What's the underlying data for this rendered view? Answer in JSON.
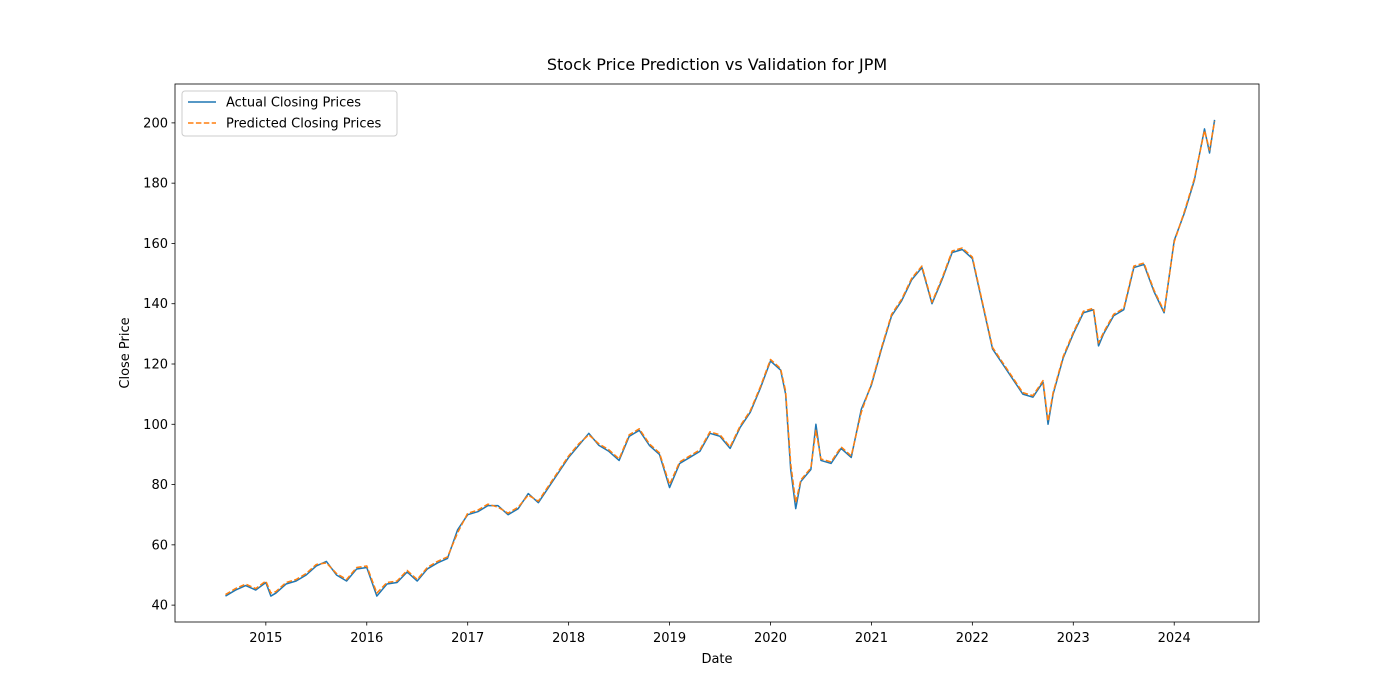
{
  "chart_data": {
    "type": "line",
    "title": "Stock Price Prediction vs Validation for JPM",
    "xlabel": "Date",
    "ylabel": "Close Price",
    "xlim": [
      2014.1,
      2024.84
    ],
    "xticks": [
      2015,
      2016,
      2017,
      2018,
      2019,
      2020,
      2021,
      2022,
      2023,
      2024
    ],
    "ylim": [
      34.4,
      212.9
    ],
    "yticks": [
      40,
      60,
      80,
      100,
      120,
      140,
      160,
      180,
      200
    ],
    "legend": "upper left",
    "grid": false,
    "x": [
      2014.6,
      2014.7,
      2014.8,
      2014.9,
      2015.0,
      2015.05,
      2015.1,
      2015.2,
      2015.3,
      2015.4,
      2015.5,
      2015.6,
      2015.7,
      2015.8,
      2015.9,
      2016.0,
      2016.1,
      2016.2,
      2016.3,
      2016.4,
      2016.5,
      2016.6,
      2016.7,
      2016.8,
      2016.9,
      2017.0,
      2017.1,
      2017.2,
      2017.3,
      2017.4,
      2017.5,
      2017.6,
      2017.7,
      2017.8,
      2017.9,
      2018.0,
      2018.1,
      2018.2,
      2018.3,
      2018.4,
      2018.5,
      2018.6,
      2018.7,
      2018.8,
      2018.9,
      2019.0,
      2019.1,
      2019.2,
      2019.3,
      2019.4,
      2019.5,
      2019.6,
      2019.7,
      2019.8,
      2019.9,
      2020.0,
      2020.1,
      2020.15,
      2020.2,
      2020.25,
      2020.3,
      2020.4,
      2020.45,
      2020.5,
      2020.6,
      2020.7,
      2020.8,
      2020.9,
      2021.0,
      2021.1,
      2021.2,
      2021.3,
      2021.4,
      2021.5,
      2021.6,
      2021.7,
      2021.8,
      2021.9,
      2022.0,
      2022.1,
      2022.2,
      2022.3,
      2022.4,
      2022.5,
      2022.6,
      2022.7,
      2022.75,
      2022.8,
      2022.9,
      2023.0,
      2023.1,
      2023.2,
      2023.25,
      2023.3,
      2023.4,
      2023.5,
      2023.6,
      2023.7,
      2023.8,
      2023.9,
      2024.0,
      2024.1,
      2024.2,
      2024.3,
      2024.35,
      2024.4
    ],
    "series": [
      {
        "name": "Actual Closing Prices",
        "color": "#1f77b4",
        "dash": false,
        "values": [
          43,
          45,
          46.5,
          45,
          47.5,
          43,
          44,
          47,
          48,
          50,
          53,
          54.5,
          50,
          48,
          52,
          52.5,
          43,
          47,
          47.5,
          51,
          48,
          52,
          54,
          55.5,
          65,
          70,
          71,
          73,
          73,
          70,
          72,
          77,
          74,
          79,
          84,
          89,
          93,
          97,
          93,
          91,
          88,
          96,
          98,
          93,
          90,
          79,
          87,
          89,
          91,
          97,
          96,
          92,
          99,
          104,
          112,
          121,
          118,
          110,
          85,
          72,
          81,
          85,
          100,
          88,
          87,
          92,
          89,
          105,
          113,
          125,
          136,
          141,
          148,
          152,
          140,
          148,
          157,
          158,
          155,
          140,
          125,
          120,
          115,
          110,
          109,
          114,
          100,
          110,
          122,
          130,
          137,
          138,
          126,
          130,
          136,
          138,
          152,
          153,
          144,
          137,
          161,
          170,
          181,
          198,
          190,
          201
        ]
      },
      {
        "name": "Predicted Closing Prices",
        "color": "#ff7f0e",
        "dash": true,
        "values": [
          43.5,
          45.5,
          47,
          45.5,
          48,
          44,
          44.5,
          47.5,
          48.5,
          50.5,
          53.5,
          54,
          50.5,
          48.5,
          52.5,
          53,
          44,
          47.5,
          48,
          51.5,
          48.5,
          52.5,
          54.5,
          56,
          64,
          70.5,
          71.5,
          73.5,
          72.5,
          70.5,
          72.5,
          76.5,
          74.5,
          79.5,
          84.5,
          89.5,
          93.5,
          96.5,
          93.5,
          91.5,
          88.5,
          96.5,
          98.5,
          93.5,
          90.5,
          80,
          87.5,
          89.5,
          91.5,
          97.5,
          96.5,
          92.5,
          99.5,
          104.5,
          112.5,
          121.5,
          118.5,
          111,
          87,
          74,
          81.5,
          85.5,
          98,
          88.5,
          87.5,
          92.5,
          89.5,
          104,
          113.5,
          125.5,
          136.5,
          141.5,
          148.5,
          152.5,
          140.5,
          148.5,
          157.5,
          158.5,
          155.5,
          140.5,
          125.5,
          120.5,
          115.5,
          110.5,
          109.5,
          114.5,
          101,
          110.5,
          122.5,
          130.5,
          137.5,
          138.5,
          127,
          130.5,
          136.5,
          138.5,
          152.5,
          153.5,
          144.5,
          137.5,
          160.5,
          170.5,
          181.5,
          197.5,
          191,
          200.5
        ]
      }
    ]
  }
}
